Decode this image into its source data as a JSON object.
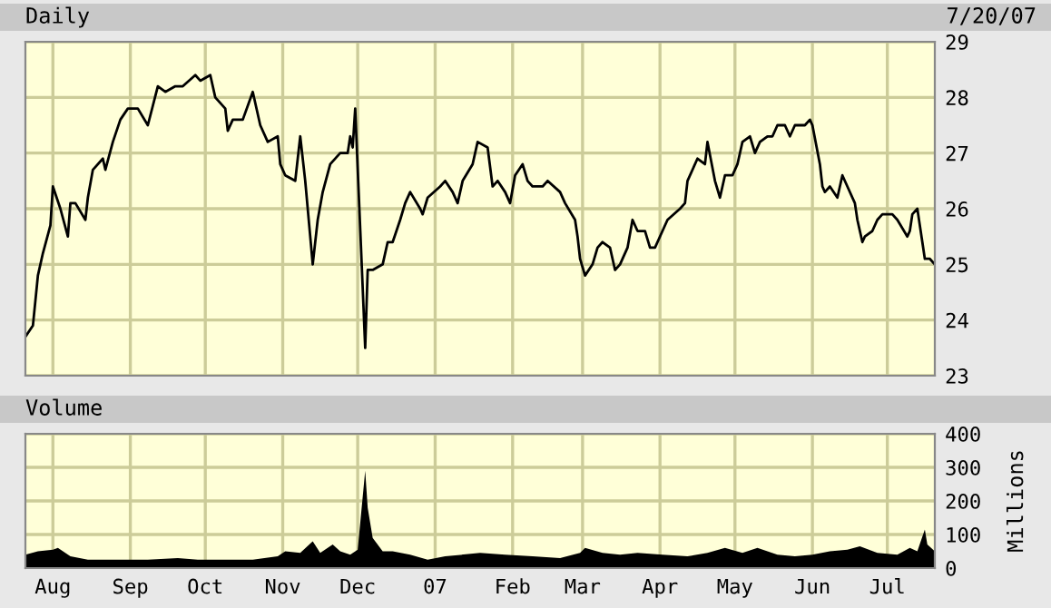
{
  "chart_data": [
    {
      "type": "line",
      "title": "Daily",
      "annotations": [
        "7/20/07"
      ],
      "xlim": [
        "2006-07-21",
        "2007-07-20"
      ],
      "ylim": [
        23,
        29
      ],
      "yticks": [
        23,
        24,
        25,
        26,
        27,
        28,
        29
      ],
      "xticks": [
        {
          "value": "2006-08-01",
          "label": null
        },
        {
          "value": "2006-09-01",
          "label": null
        },
        {
          "value": "2006-10-01",
          "label": null
        },
        {
          "value": "2006-11-01",
          "label": null
        },
        {
          "value": "2006-12-01",
          "label": null
        },
        {
          "value": "2007-01-01",
          "label": null
        },
        {
          "value": "2007-02-01",
          "label": null
        },
        {
          "value": "2007-03-01",
          "label": null
        },
        {
          "value": "2007-04-01",
          "label": null
        },
        {
          "value": "2007-05-01",
          "label": null
        },
        {
          "value": "2007-06-01",
          "label": null
        },
        {
          "value": "2007-07-01",
          "label": null
        }
      ],
      "tick_labels": "y",
      "grid": true,
      "legend": false,
      "x": [
        "2006-07-21",
        "2006-07-24",
        "2006-07-26",
        "2006-07-28",
        "2006-07-31",
        "2006-08-01",
        "2006-08-04",
        "2006-08-07",
        "2006-08-08",
        "2006-08-10",
        "2006-08-14",
        "2006-08-15",
        "2006-08-17",
        "2006-08-21",
        "2006-08-22",
        "2006-08-25",
        "2006-08-28",
        "2006-08-31",
        "2006-09-04",
        "2006-09-08",
        "2006-09-12",
        "2006-09-15",
        "2006-09-19",
        "2006-09-22",
        "2006-09-27",
        "2006-09-29",
        "2006-10-03",
        "2006-10-05",
        "2006-10-09",
        "2006-10-10",
        "2006-10-12",
        "2006-10-16",
        "2006-10-20",
        "2006-10-23",
        "2006-10-26",
        "2006-10-30",
        "2006-10-31",
        "2006-11-02",
        "2006-11-06",
        "2006-11-08",
        "2006-11-10",
        "2006-11-13",
        "2006-11-15",
        "2006-11-17",
        "2006-11-20",
        "2006-11-24",
        "2006-11-27",
        "2006-11-28",
        "2006-11-29",
        "2006-11-30",
        "2006-12-04",
        "2006-12-05",
        "2006-12-07",
        "2006-12-11",
        "2006-12-13",
        "2006-12-15",
        "2006-12-18",
        "2006-12-20",
        "2006-12-22",
        "2006-12-26",
        "2006-12-27",
        "2006-12-29",
        "2007-01-03",
        "2007-01-05",
        "2007-01-08",
        "2007-01-10",
        "2007-01-12",
        "2007-01-16",
        "2007-01-18",
        "2007-01-22",
        "2007-01-24",
        "2007-01-26",
        "2007-01-29",
        "2007-01-31",
        "2007-02-02",
        "2007-02-05",
        "2007-02-07",
        "2007-02-09",
        "2007-02-13",
        "2007-02-15",
        "2007-02-20",
        "2007-02-22",
        "2007-02-26",
        "2007-02-27",
        "2007-02-28",
        "2007-03-02",
        "2007-03-05",
        "2007-03-07",
        "2007-03-09",
        "2007-03-12",
        "2007-03-14",
        "2007-03-16",
        "2007-03-19",
        "2007-03-21",
        "2007-03-23",
        "2007-03-26",
        "2007-03-28",
        "2007-03-30",
        "2007-04-02",
        "2007-04-04",
        "2007-04-09",
        "2007-04-11",
        "2007-04-12",
        "2007-04-16",
        "2007-04-19",
        "2007-04-20",
        "2007-04-23",
        "2007-04-25",
        "2007-04-27",
        "2007-04-30",
        "2007-05-02",
        "2007-05-04",
        "2007-05-07",
        "2007-05-09",
        "2007-05-11",
        "2007-05-14",
        "2007-05-16",
        "2007-05-18",
        "2007-05-21",
        "2007-05-23",
        "2007-05-25",
        "2007-05-29",
        "2007-05-31",
        "2007-06-01",
        "2007-06-04",
        "2007-06-05",
        "2007-06-06",
        "2007-06-08",
        "2007-06-11",
        "2007-06-13",
        "2007-06-15",
        "2007-06-18",
        "2007-06-19",
        "2007-06-21",
        "2007-06-22",
        "2007-06-25",
        "2007-06-27",
        "2007-06-29",
        "2007-07-03",
        "2007-07-05",
        "2007-07-09",
        "2007-07-10",
        "2007-07-11",
        "2007-07-13",
        "2007-07-16",
        "2007-07-18",
        "2007-07-20"
      ],
      "series": [
        {
          "color": "#000000",
          "values": [
            23.7,
            23.9,
            24.8,
            25.2,
            25.7,
            26.4,
            26.0,
            25.5,
            26.1,
            26.1,
            25.8,
            26.2,
            26.7,
            26.9,
            26.7,
            27.2,
            27.6,
            27.8,
            27.8,
            27.5,
            28.2,
            28.1,
            28.2,
            28.2,
            28.4,
            28.3,
            28.4,
            28.0,
            27.8,
            27.4,
            27.6,
            27.6,
            28.1,
            27.5,
            27.2,
            27.3,
            26.8,
            26.6,
            26.5,
            27.3,
            26.5,
            25.0,
            25.8,
            26.3,
            26.8,
            27.0,
            27.0,
            27.3,
            27.1,
            27.8,
            23.5,
            24.9,
            24.9,
            25.0,
            25.4,
            25.4,
            25.8,
            26.1,
            26.3,
            26.0,
            25.9,
            26.2,
            26.4,
            26.5,
            26.3,
            26.1,
            26.5,
            26.8,
            27.2,
            27.1,
            26.4,
            26.5,
            26.3,
            26.1,
            26.6,
            26.8,
            26.5,
            26.4,
            26.4,
            26.5,
            26.3,
            26.1,
            25.8,
            25.5,
            25.1,
            24.8,
            25.0,
            25.3,
            25.4,
            25.3,
            24.9,
            25.0,
            25.3,
            25.8,
            25.6,
            25.6,
            25.3,
            25.3,
            25.6,
            25.8,
            26.0,
            26.1,
            26.5,
            26.9,
            26.8,
            27.2,
            26.5,
            26.2,
            26.6,
            26.6,
            26.8,
            27.2,
            27.3,
            27.0,
            27.2,
            27.3,
            27.3,
            27.5,
            27.5,
            27.3,
            27.5,
            27.5,
            27.6,
            27.5,
            26.8,
            26.4,
            26.3,
            26.4,
            26.2,
            26.6,
            26.4,
            26.1,
            25.8,
            25.4,
            25.5,
            25.6,
            25.8,
            25.9,
            25.9,
            25.8,
            25.5,
            25.6,
            25.9,
            26.0,
            25.1,
            25.1,
            25.0
          ]
        }
      ]
    },
    {
      "type": "area",
      "title": "Volume",
      "ylabel": "Millions",
      "xlim": [
        "2006-07-21",
        "2007-07-20"
      ],
      "ylim": [
        0,
        400
      ],
      "yticks": [
        0,
        100,
        200,
        300,
        400
      ],
      "xticks": [
        {
          "value": "2006-08-01",
          "label": "Aug"
        },
        {
          "value": "2006-09-01",
          "label": "Sep"
        },
        {
          "value": "2006-10-01",
          "label": "Oct"
        },
        {
          "value": "2006-11-01",
          "label": "Nov"
        },
        {
          "value": "2006-12-01",
          "label": "Dec"
        },
        {
          "value": "2007-01-01",
          "label": "07"
        },
        {
          "value": "2007-02-01",
          "label": "Feb"
        },
        {
          "value": "2007-03-01",
          "label": "Mar"
        },
        {
          "value": "2007-04-01",
          "label": "Apr"
        },
        {
          "value": "2007-05-01",
          "label": "May"
        },
        {
          "value": "2007-06-01",
          "label": "Jun"
        },
        {
          "value": "2007-07-01",
          "label": "Jul"
        }
      ],
      "grid": true,
      "legend": false,
      "x": [
        "2006-07-21",
        "2006-07-26",
        "2006-08-01",
        "2006-08-03",
        "2006-08-08",
        "2006-08-15",
        "2006-08-25",
        "2006-09-08",
        "2006-09-20",
        "2006-09-28",
        "2006-10-10",
        "2006-10-20",
        "2006-10-30",
        "2006-11-02",
        "2006-11-08",
        "2006-11-13",
        "2006-11-16",
        "2006-11-21",
        "2006-11-24",
        "2006-11-28",
        "2006-12-01",
        "2006-12-04",
        "2006-12-05",
        "2006-12-07",
        "2006-12-11",
        "2006-12-15",
        "2006-12-22",
        "2006-12-29",
        "2007-01-05",
        "2007-01-19",
        "2007-01-29",
        "2007-02-09",
        "2007-02-20",
        "2007-02-28",
        "2007-03-02",
        "2007-03-09",
        "2007-03-16",
        "2007-03-23",
        "2007-04-02",
        "2007-04-12",
        "2007-04-20",
        "2007-04-27",
        "2007-05-04",
        "2007-05-10",
        "2007-05-18",
        "2007-05-25",
        "2007-06-01",
        "2007-06-08",
        "2007-06-15",
        "2007-06-20",
        "2007-06-27",
        "2007-07-05",
        "2007-07-10",
        "2007-07-13",
        "2007-07-16",
        "2007-07-17",
        "2007-07-20"
      ],
      "series": [
        {
          "color": "#000000",
          "values": [
            40,
            50,
            55,
            60,
            35,
            25,
            25,
            25,
            30,
            25,
            25,
            25,
            35,
            50,
            45,
            80,
            45,
            70,
            50,
            40,
            55,
            290,
            180,
            90,
            50,
            50,
            40,
            25,
            35,
            45,
            40,
            35,
            30,
            45,
            60,
            45,
            40,
            45,
            40,
            35,
            45,
            60,
            45,
            60,
            40,
            35,
            40,
            50,
            55,
            65,
            45,
            40,
            60,
            50,
            115,
            70,
            50
          ]
        }
      ]
    }
  ]
}
